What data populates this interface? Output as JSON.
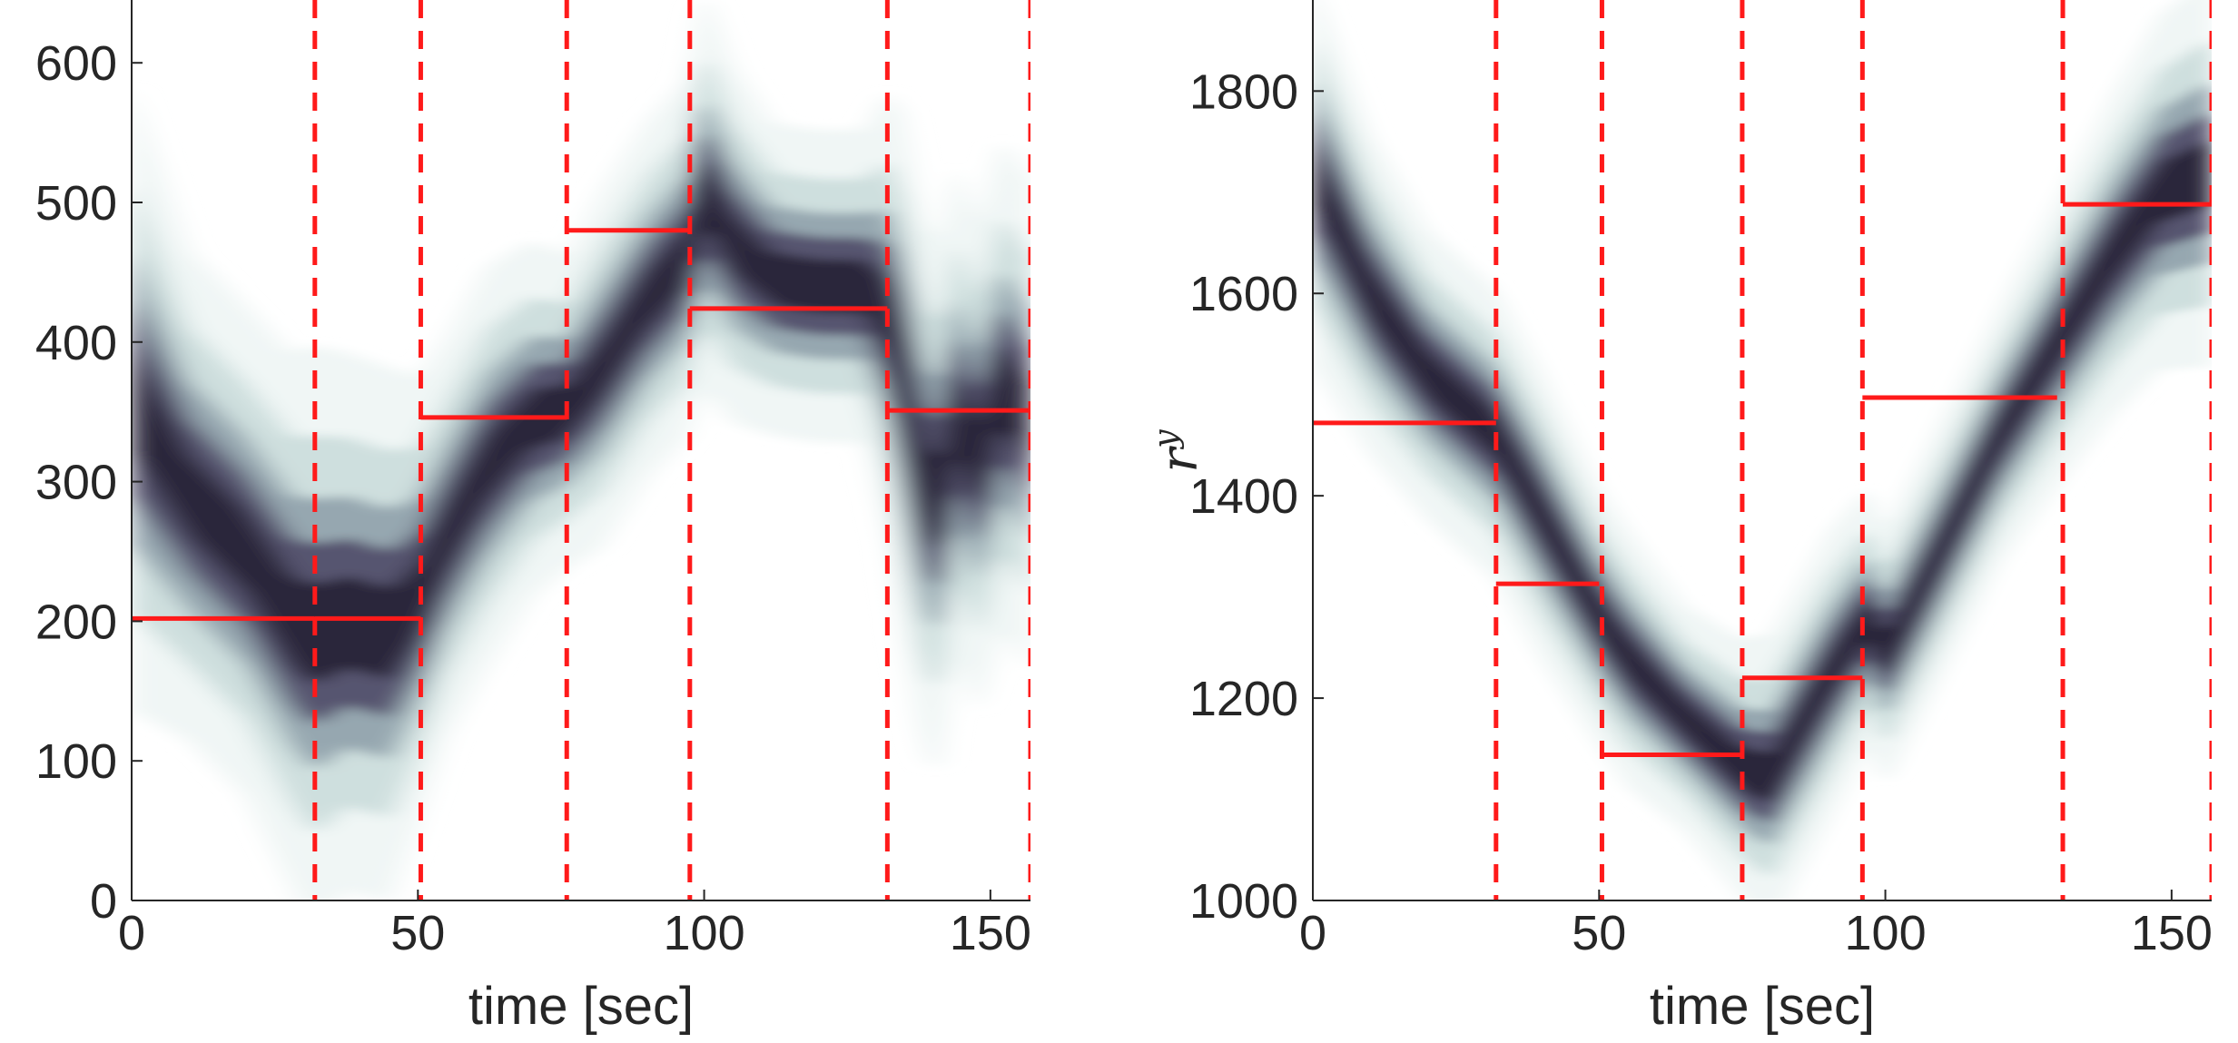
{
  "chart_data": [
    {
      "type": "heatmap",
      "panel": "left",
      "xlabel": "time [sec]",
      "ylabel": "",
      "xlim": [
        0,
        157
      ],
      "ylim": [
        0,
        645
      ],
      "xticks": [
        0,
        50,
        100,
        150
      ],
      "yticks": [
        0,
        100,
        200,
        300,
        400,
        500,
        600
      ],
      "colormap": "bone (reversed)",
      "grid": false,
      "change_points": [
        32,
        50.5,
        76,
        97.5,
        132,
        157
      ],
      "segment_estimates": [
        {
          "x0": 0,
          "x1": 32,
          "y": 202
        },
        {
          "x0": 32,
          "x1": 50.5,
          "y": 202
        },
        {
          "x0": 50.5,
          "x1": 76,
          "y": 346
        },
        {
          "x0": 76,
          "x1": 97.5,
          "y": 480
        },
        {
          "x0": 97.5,
          "x1": 132,
          "y": 424
        },
        {
          "x0": 132,
          "x1": 157,
          "y": 351
        }
      ],
      "density_ridge": {
        "x": [
          0,
          10,
          20,
          28,
          32,
          38,
          45,
          50,
          55,
          62,
          70,
          76,
          82,
          90,
          97,
          100,
          105,
          112,
          120,
          128,
          132,
          135,
          138,
          141,
          144,
          148,
          152,
          157
        ],
        "y": [
          360,
          290,
          250,
          200,
          190,
          200,
          190,
          215,
          260,
          310,
          345,
          350,
          380,
          430,
          460,
          510,
          470,
          445,
          440,
          440,
          420,
          370,
          300,
          280,
          350,
          310,
          370,
          340
        ],
        "spread": [
          70,
          55,
          55,
          60,
          65,
          60,
          60,
          50,
          45,
          45,
          40,
          35,
          40,
          40,
          40,
          45,
          40,
          35,
          35,
          35,
          50,
          60,
          60,
          60,
          55,
          55,
          55,
          55
        ]
      }
    },
    {
      "type": "heatmap",
      "panel": "right",
      "xlabel": "time [sec]",
      "ylabel": "r",
      "ylabel_sup": "y",
      "xlim": [
        0,
        157
      ],
      "ylim": [
        1000,
        1890
      ],
      "xticks": [
        0,
        50,
        100,
        150
      ],
      "yticks": [
        1000,
        1200,
        1400,
        1600,
        1800
      ],
      "colormap": "bone (reversed)",
      "grid": false,
      "change_points": [
        32,
        50.5,
        75,
        96,
        131,
        157
      ],
      "segment_estimates": [
        {
          "x0": 0,
          "x1": 32,
          "y": 1472
        },
        {
          "x0": 32,
          "x1": 50,
          "y": 1313
        },
        {
          "x0": 50.5,
          "x1": 75,
          "y": 1144
        },
        {
          "x0": 75,
          "x1": 96,
          "y": 1220
        },
        {
          "x0": 96,
          "x1": 130,
          "y": 1497
        },
        {
          "x0": 131,
          "x1": 157,
          "y": 1688
        }
      ],
      "density_ridge": {
        "x": [
          0,
          10,
          20,
          32,
          40,
          50,
          55,
          65,
          75,
          80,
          90,
          97,
          100,
          110,
          120,
          131,
          140,
          148,
          157
        ],
        "y": [
          1720,
          1600,
          1520,
          1460,
          1380,
          1280,
          1240,
          1180,
          1130,
          1120,
          1220,
          1280,
          1240,
          1350,
          1460,
          1560,
          1640,
          1700,
          1720
        ],
        "spread": [
          60,
          50,
          45,
          45,
          45,
          40,
          40,
          35,
          40,
          45,
          45,
          40,
          40,
          40,
          40,
          45,
          50,
          55,
          60
        ]
      }
    }
  ]
}
